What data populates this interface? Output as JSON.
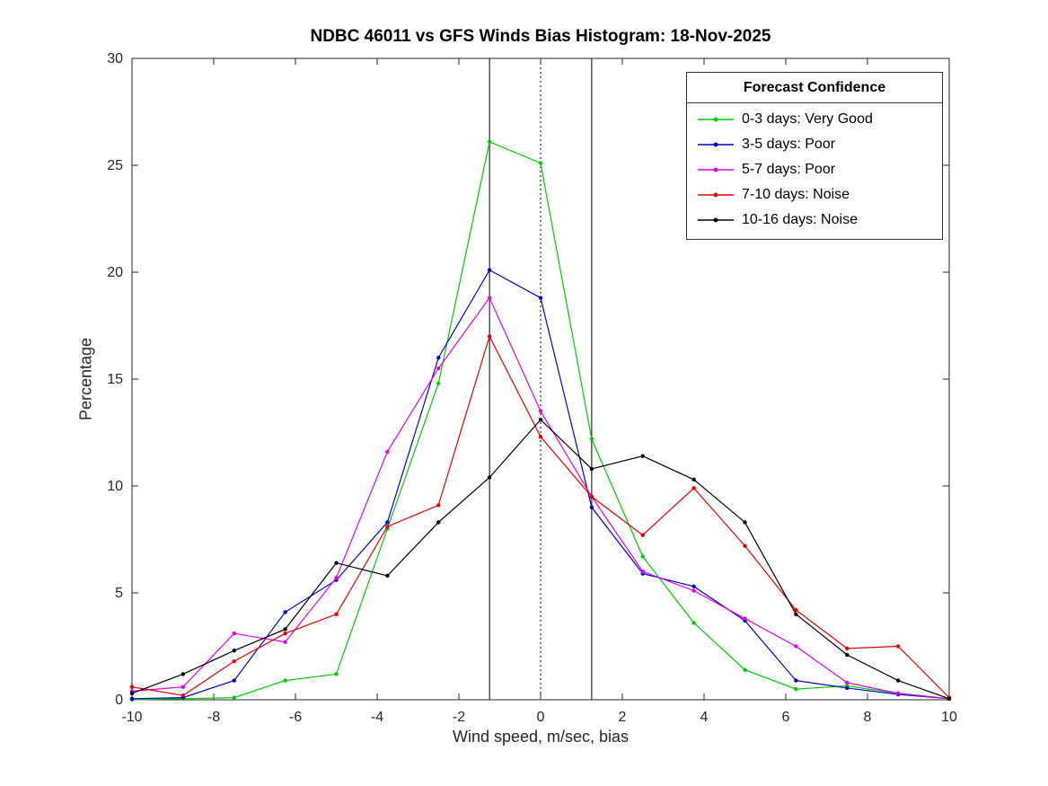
{
  "chart_data": {
    "type": "line",
    "title": "NDBC 46011 vs GFS Winds Bias Histogram: 18-Nov-2025",
    "xlabel": "Wind speed, m/sec, bias",
    "ylabel": "Percentage",
    "xlim": [
      -10,
      10
    ],
    "ylim": [
      0,
      30
    ],
    "xticks": [
      -10,
      -8,
      -6,
      -4,
      -2,
      0,
      2,
      4,
      6,
      8,
      10
    ],
    "yticks": [
      0,
      5,
      10,
      15,
      20,
      25,
      30
    ],
    "grid": false,
    "axis_color": "#262626",
    "x": [
      -10,
      -8.75,
      -7.5,
      -6.25,
      -5,
      -3.75,
      -2.5,
      -1.25,
      0,
      1.25,
      2.5,
      3.75,
      5,
      6.25,
      7.5,
      8.75,
      10
    ],
    "legend": {
      "title": "Forecast Confidence",
      "position": "top-right"
    },
    "reference_lines": [
      {
        "x": -1.25,
        "style": "solid",
        "color": "#000000"
      },
      {
        "x": 0,
        "style": "dotted",
        "color": "#000000"
      },
      {
        "x": 1.25,
        "style": "solid",
        "color": "#000000"
      }
    ],
    "series": [
      {
        "name": "0-3 days: Very Good",
        "color": "#00cc00",
        "values": [
          0.0,
          0.05,
          0.1,
          0.9,
          1.2,
          8.0,
          14.8,
          26.1,
          25.1,
          12.2,
          6.7,
          3.6,
          1.4,
          0.5,
          0.65,
          0.3,
          0.05
        ]
      },
      {
        "name": "3-5 days: Poor",
        "color": "#0000cc",
        "values": [
          0.05,
          0.1,
          0.9,
          4.1,
          5.6,
          8.3,
          16.0,
          20.1,
          18.8,
          9.0,
          5.9,
          5.3,
          3.7,
          0.9,
          0.55,
          0.25,
          0.05
        ]
      },
      {
        "name": "5-7 days: Poor",
        "color": "#e600e6",
        "values": [
          0.4,
          0.6,
          3.1,
          2.7,
          5.7,
          11.6,
          15.5,
          18.8,
          13.5,
          9.5,
          6.0,
          5.1,
          3.8,
          2.5,
          0.8,
          0.3,
          0.05
        ]
      },
      {
        "name": "7-10 days: Noise",
        "color": "#e60000",
        "values": [
          0.6,
          0.2,
          1.8,
          3.1,
          4.0,
          8.1,
          9.1,
          17.0,
          12.3,
          9.5,
          7.7,
          9.9,
          7.2,
          4.2,
          2.4,
          2.5,
          0.1
        ]
      },
      {
        "name": "10-16 days: Noise",
        "color": "#000000",
        "values": [
          0.3,
          1.2,
          2.3,
          3.3,
          6.4,
          5.8,
          8.3,
          10.4,
          13.1,
          10.8,
          11.4,
          10.3,
          8.3,
          4.0,
          2.1,
          0.9,
          0.05
        ]
      }
    ]
  }
}
